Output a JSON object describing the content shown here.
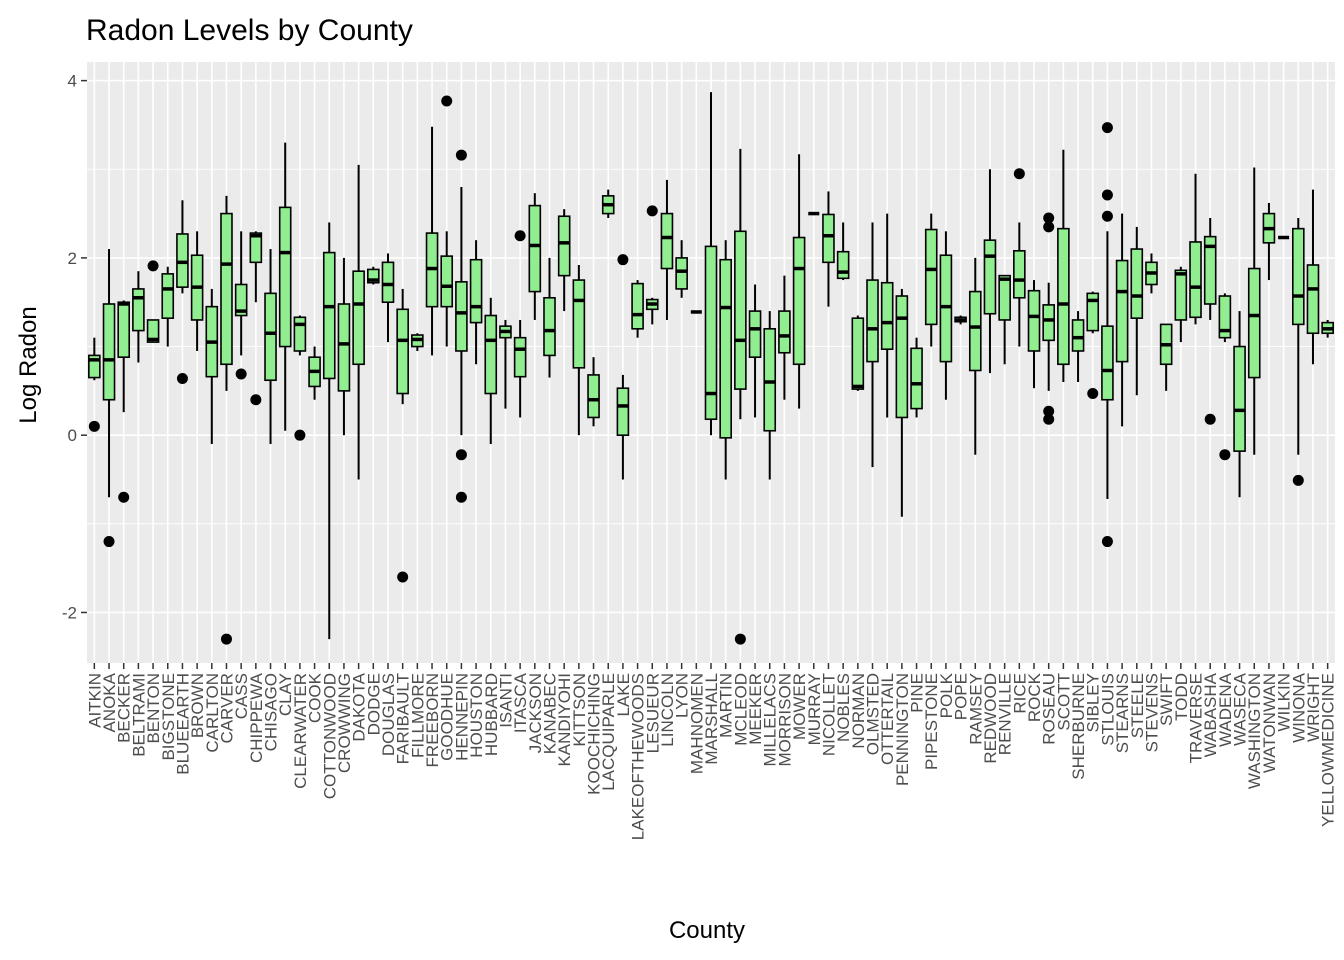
{
  "chart_data": {
    "type": "boxplot",
    "title": "Radon Levels by County",
    "x_label": "County",
    "y_label": "Log Radon",
    "color": "#90ee90",
    "grid": true,
    "ylim": [
      -2.57,
      4.21
    ],
    "yticks": [
      -2,
      0,
      2,
      4
    ],
    "categories": [
      "AITKIN",
      "ANOKA",
      "BECKER",
      "BELTRAMI",
      "BENTON",
      "BIGSTONE",
      "BLUEEARTH",
      "BROWN",
      "CARLTON",
      "CARVER",
      "CASS",
      "CHIPPEWA",
      "CHISAGO",
      "CLAY",
      "CLEARWATER",
      "COOK",
      "COTTONWOOD",
      "CROWWING",
      "DAKOTA",
      "DODGE",
      "DOUGLAS",
      "FARIBAULT",
      "FILLMORE",
      "FREEBORN",
      "GOODHUE",
      "HENNEPIN",
      "HOUSTON",
      "HUBBARD",
      "ISANTI",
      "ITASCA",
      "JACKSON",
      "KANABEC",
      "KANDIYOHI",
      "KITTSON",
      "KOOCHICHING",
      "LACQUIPARLE",
      "LAKE",
      "LAKEOFTHEWOODS",
      "LESUEUR",
      "LINCOLN",
      "LYON",
      "MAHNOMEN",
      "MARSHALL",
      "MARTIN",
      "MCLEOD",
      "MEEKER",
      "MILLELACS",
      "MORRISON",
      "MOWER",
      "MURRAY",
      "NICOLLET",
      "NOBLES",
      "NORMAN",
      "OLMSTED",
      "OTTERTAIL",
      "PENNINGTON",
      "PINE",
      "PIPESTONE",
      "POLK",
      "POPE",
      "RAMSEY",
      "REDWOOD",
      "RENVILLE",
      "RICE",
      "ROCK",
      "ROSEAU",
      "SCOTT",
      "SHERBURNE",
      "SIBLEY",
      "STLOUIS",
      "STEARNS",
      "STEELE",
      "STEVENS",
      "SWIFT",
      "TODD",
      "TRAVERSE",
      "WABASHA",
      "WADENA",
      "WASECA",
      "WASHINGTON",
      "WATONWAN",
      "WILKIN",
      "WINONA",
      "WRIGHT",
      "YELLOWMEDICINE"
    ],
    "low": [
      0.62,
      -0.7,
      0.26,
      0.82,
      1.05,
      1.0,
      1.6,
      0.95,
      -0.1,
      0.5,
      0.9,
      1.5,
      -0.1,
      0.05,
      0.9,
      0.4,
      -2.3,
      0.0,
      -0.5,
      1.7,
      1.05,
      0.35,
      0.95,
      0.9,
      1.0,
      0.0,
      0.8,
      -0.1,
      0.3,
      0.2,
      1.3,
      0.65,
      1.4,
      0.0,
      0.1,
      2.45,
      -0.5,
      1.1,
      1.25,
      1.3,
      1.55,
      1.39,
      0.0,
      -0.5,
      0.18,
      0.2,
      -0.5,
      0.4,
      0.3,
      2.5,
      1.45,
      1.75,
      0.5,
      -0.36,
      0.2,
      -0.92,
      0.2,
      1.0,
      0.4,
      1.25,
      -0.22,
      0.7,
      0.8,
      1.0,
      0.53,
      0.5,
      0.6,
      0.6,
      1.15,
      -0.72,
      0.1,
      0.45,
      1.6,
      0.5,
      1.05,
      1.25,
      1.3,
      1.05,
      -0.7,
      -0.22,
      1.75,
      2.23,
      -0.22,
      0.8,
      1.1
    ],
    "q1": [
      0.65,
      0.4,
      0.88,
      1.18,
      1.05,
      1.32,
      1.67,
      1.3,
      0.66,
      0.8,
      1.35,
      1.95,
      0.62,
      1.0,
      0.95,
      0.55,
      0.64,
      0.5,
      0.8,
      1.72,
      1.5,
      0.47,
      1.0,
      1.45,
      1.45,
      0.95,
      1.27,
      0.47,
      1.1,
      0.66,
      1.62,
      0.9,
      1.8,
      0.76,
      0.2,
      2.5,
      0.0,
      1.2,
      1.42,
      1.88,
      1.65,
      1.39,
      0.18,
      -0.03,
      0.52,
      0.88,
      0.05,
      0.93,
      0.8,
      2.5,
      1.95,
      1.77,
      0.52,
      0.83,
      0.97,
      0.2,
      0.3,
      1.25,
      0.83,
      1.28,
      0.73,
      1.37,
      1.3,
      1.55,
      0.95,
      1.07,
      0.8,
      0.95,
      1.18,
      0.4,
      0.83,
      1.32,
      1.7,
      0.8,
      1.3,
      1.33,
      1.48,
      1.1,
      -0.18,
      0.65,
      2.17,
      2.23,
      1.25,
      1.15,
      1.15
    ],
    "median": [
      0.85,
      0.85,
      1.48,
      1.55,
      1.08,
      1.65,
      1.95,
      1.67,
      1.05,
      1.93,
      1.4,
      2.25,
      1.15,
      2.06,
      1.25,
      0.72,
      1.45,
      1.03,
      1.48,
      1.75,
      1.7,
      1.07,
      1.08,
      1.88,
      1.68,
      1.38,
      1.45,
      1.07,
      1.17,
      0.97,
      2.14,
      1.18,
      2.17,
      1.52,
      0.4,
      2.6,
      0.33,
      1.36,
      1.48,
      2.23,
      1.85,
      1.39,
      0.47,
      1.44,
      1.07,
      1.2,
      0.6,
      1.12,
      1.88,
      2.5,
      2.25,
      1.84,
      0.55,
      1.2,
      1.27,
      1.32,
      0.58,
      1.87,
      1.45,
      1.3,
      1.22,
      2.02,
      1.76,
      1.75,
      1.34,
      1.3,
      1.48,
      1.1,
      1.52,
      0.73,
      1.62,
      1.57,
      1.83,
      1.02,
      1.82,
      1.67,
      2.13,
      1.18,
      0.28,
      1.35,
      2.33,
      2.23,
      1.57,
      1.65,
      1.2
    ],
    "q3": [
      0.9,
      1.48,
      1.5,
      1.65,
      1.3,
      1.82,
      2.27,
      2.03,
      1.45,
      2.5,
      1.7,
      2.28,
      1.6,
      2.57,
      1.33,
      0.88,
      2.06,
      1.48,
      1.85,
      1.87,
      1.95,
      1.42,
      1.13,
      2.28,
      2.02,
      1.73,
      1.98,
      1.35,
      1.23,
      1.1,
      2.59,
      1.55,
      2.47,
      1.75,
      0.68,
      2.7,
      0.53,
      1.71,
      1.53,
      2.5,
      2.0,
      1.39,
      2.13,
      1.98,
      2.3,
      1.4,
      1.2,
      1.4,
      2.23,
      2.5,
      2.49,
      2.07,
      1.32,
      1.75,
      1.72,
      1.57,
      0.98,
      2.32,
      2.03,
      1.33,
      1.62,
      2.2,
      1.8,
      2.08,
      1.63,
      1.47,
      2.33,
      1.3,
      1.6,
      1.23,
      1.97,
      2.1,
      1.95,
      1.25,
      1.86,
      2.18,
      2.24,
      1.57,
      1.0,
      1.88,
      2.5,
      2.23,
      2.33,
      1.92,
      1.27
    ],
    "high": [
      1.1,
      2.1,
      1.52,
      1.85,
      1.3,
      1.9,
      2.65,
      2.3,
      1.65,
      2.7,
      2.3,
      2.3,
      2.1,
      3.3,
      1.35,
      1.0,
      2.4,
      2.0,
      3.05,
      1.9,
      2.05,
      1.65,
      1.15,
      3.48,
      2.3,
      2.8,
      2.2,
      1.55,
      1.3,
      1.3,
      2.73,
      2.0,
      2.55,
      1.92,
      0.88,
      2.77,
      0.68,
      1.75,
      1.55,
      2.88,
      2.2,
      1.39,
      3.87,
      2.2,
      3.23,
      1.7,
      1.4,
      1.8,
      3.17,
      2.5,
      2.75,
      2.4,
      1.35,
      2.4,
      2.5,
      1.65,
      1.1,
      2.5,
      2.3,
      1.35,
      2.0,
      3.0,
      1.8,
      2.4,
      1.75,
      1.72,
      3.22,
      1.4,
      1.62,
      2.3,
      2.5,
      2.35,
      2.05,
      1.25,
      1.9,
      2.95,
      2.45,
      1.6,
      1.4,
      3.02,
      2.62,
      2.23,
      2.45,
      2.77,
      1.3
    ],
    "outliers": [
      [
        0.1
      ],
      [
        -1.2
      ],
      [
        -0.7
      ],
      [],
      [
        1.91
      ],
      [],
      [
        0.64
      ],
      [],
      [],
      [
        -2.3
      ],
      [
        0.69
      ],
      [
        0.4
      ],
      [],
      [],
      [
        0.0
      ],
      [],
      [],
      [],
      [],
      [],
      [],
      [
        -1.6
      ],
      [],
      [],
      [
        3.77
      ],
      [
        3.16,
        -0.22,
        -0.7
      ],
      [],
      [],
      [],
      [
        2.25
      ],
      [],
      [],
      [],
      [],
      [],
      [],
      [
        1.98
      ],
      [],
      [
        2.53
      ],
      [],
      [],
      [],
      [],
      [],
      [
        -2.3
      ],
      [],
      [],
      [],
      [],
      [],
      [],
      [],
      [],
      [],
      [],
      [],
      [],
      [],
      [],
      [],
      [],
      [],
      [],
      [
        2.95
      ],
      [],
      [
        2.45,
        2.35,
        0.27,
        0.18
      ],
      [],
      [],
      [
        0.47
      ],
      [
        3.47,
        2.71,
        2.47,
        -1.2
      ],
      [],
      [],
      [],
      [],
      [],
      [],
      [
        0.18
      ],
      [
        -0.22
      ],
      [],
      [],
      [],
      [],
      [
        -0.51
      ],
      [],
      []
    ]
  }
}
